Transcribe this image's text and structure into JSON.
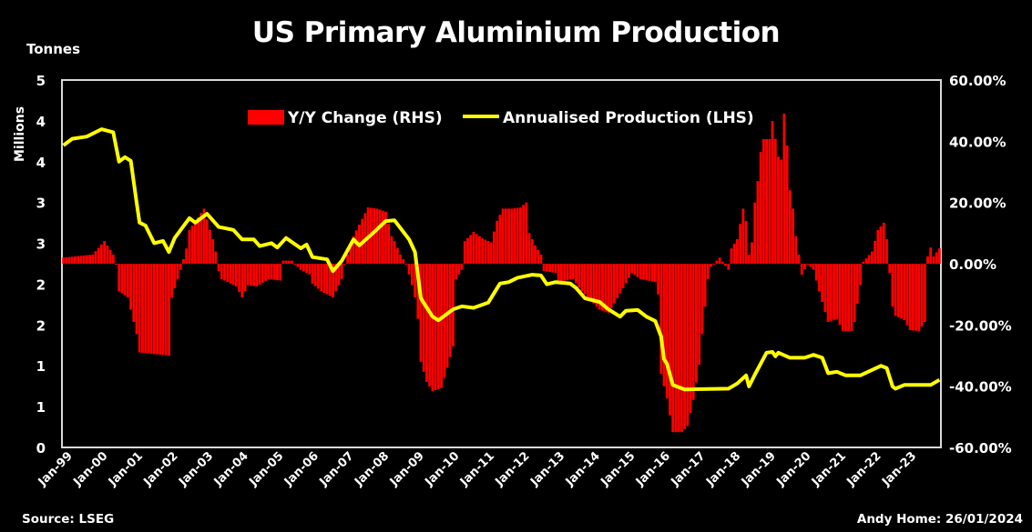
{
  "chart_data": {
    "type": "bar+line",
    "title": "US Primary Aluminium Production",
    "y_left_label": "Tonnes",
    "y_left_scale_label": "Millions",
    "y_left_range": [
      0,
      5
    ],
    "y_left_ticks": [
      "5",
      "4",
      "4",
      "3",
      "3",
      "2",
      "2",
      "1",
      "1",
      "0"
    ],
    "y_right_range": [
      -60,
      60
    ],
    "y_right_ticks": [
      "60.00%",
      "40.00%",
      "20.00%",
      "0.00%",
      "-20.00%",
      "-40.00%",
      "-60.00%"
    ],
    "x_range": [
      "1999-01",
      "2023-12"
    ],
    "x_ticks": [
      "Jan-99",
      "Jan-00",
      "Jan-01",
      "Jan-02",
      "Jan-03",
      "Jan-04",
      "Jan-05",
      "Jan-06",
      "Jan-07",
      "Jan-08",
      "Jan-09",
      "Jan-10",
      "Jan-11",
      "Jan-12",
      "Jan-13",
      "Jan-14",
      "Jan-15",
      "Jan-16",
      "Jan-17",
      "Jan-18",
      "Jan-19",
      "Jan-20",
      "Jan-21",
      "Jan-22",
      "Jan-23"
    ],
    "legend_position": "top-center",
    "grid": false,
    "series": [
      {
        "name": "Y/Y Change (RHS)",
        "type": "bar",
        "axis": "right",
        "unit": "%",
        "color": "#ff0000",
        "points": [
          [
            "1999-01",
            2
          ],
          [
            "1999-11",
            3
          ],
          [
            "2000-03",
            7.4
          ],
          [
            "2000-06",
            3
          ],
          [
            "2000-07",
            0
          ],
          [
            "2000-08",
            -9
          ],
          [
            "2000-11",
            -11
          ],
          [
            "2001-02",
            -23
          ],
          [
            "2001-03",
            -29
          ],
          [
            "2002-01",
            -30
          ],
          [
            "2002-02",
            -11
          ],
          [
            "2002-04",
            -5
          ],
          [
            "2002-05",
            -2
          ],
          [
            "2002-07",
            5
          ],
          [
            "2002-08",
            11
          ],
          [
            "2003-01",
            18
          ],
          [
            "2003-03",
            11
          ],
          [
            "2003-04",
            8
          ],
          [
            "2003-05",
            4
          ],
          [
            "2003-06",
            -2.4
          ],
          [
            "2003-07",
            -5
          ],
          [
            "2003-12",
            -7.4
          ],
          [
            "2004-02",
            -11
          ],
          [
            "2004-04",
            -7
          ],
          [
            "2004-07",
            -7.4
          ],
          [
            "2004-11",
            -5
          ],
          [
            "2005-03",
            -5.5
          ],
          [
            "2005-04",
            1
          ],
          [
            "2005-07",
            1
          ],
          [
            "2005-10",
            -2
          ],
          [
            "2006-01",
            -3.5
          ],
          [
            "2006-02",
            -6.5
          ],
          [
            "2006-05",
            -9
          ],
          [
            "2006-09",
            -11
          ],
          [
            "2006-12",
            -5
          ],
          [
            "2007-01",
            0
          ],
          [
            "2007-04",
            9
          ],
          [
            "2007-09",
            18.4
          ],
          [
            "2007-12",
            18
          ],
          [
            "2008-03",
            17
          ],
          [
            "2008-05",
            9
          ],
          [
            "2008-06",
            7.4
          ],
          [
            "2008-08",
            3
          ],
          [
            "2008-10",
            0
          ],
          [
            "2008-12",
            -7
          ],
          [
            "2009-01",
            -11
          ],
          [
            "2009-02",
            -18
          ],
          [
            "2009-03",
            -32
          ],
          [
            "2009-05",
            -38.6
          ],
          [
            "2009-07",
            -41.6
          ],
          [
            "2009-10",
            -40.6
          ],
          [
            "2009-12",
            -34
          ],
          [
            "2010-02",
            -27
          ],
          [
            "2010-03",
            -5
          ],
          [
            "2010-05",
            -2
          ],
          [
            "2010-06",
            7.4
          ],
          [
            "2010-09",
            10.4
          ],
          [
            "2010-12",
            8.3
          ],
          [
            "2011-03",
            7
          ],
          [
            "2011-05",
            14
          ],
          [
            "2011-07",
            18
          ],
          [
            "2011-10",
            18
          ],
          [
            "2012-01",
            18.4
          ],
          [
            "2012-03",
            20
          ],
          [
            "2012-04",
            10
          ],
          [
            "2012-06",
            6
          ],
          [
            "2012-08",
            3
          ],
          [
            "2012-09",
            -2.4
          ],
          [
            "2013-01",
            -3
          ],
          [
            "2013-02",
            -6
          ],
          [
            "2013-07",
            -5
          ],
          [
            "2013-10",
            -9
          ],
          [
            "2013-12",
            -11
          ],
          [
            "2014-04",
            -15
          ],
          [
            "2014-07",
            -16
          ],
          [
            "2014-09",
            -13
          ],
          [
            "2014-12",
            -8
          ],
          [
            "2015-03",
            -3
          ],
          [
            "2015-06",
            -5
          ],
          [
            "2015-11",
            -6
          ],
          [
            "2015-12",
            -10
          ],
          [
            "2016-01",
            -36
          ],
          [
            "2016-03",
            -44
          ],
          [
            "2016-05",
            -55
          ],
          [
            "2016-08",
            -55
          ],
          [
            "2016-10",
            -53
          ],
          [
            "2016-12",
            -44.5
          ],
          [
            "2017-02",
            -33
          ],
          [
            "2017-03",
            -23
          ],
          [
            "2017-05",
            -5
          ],
          [
            "2017-06",
            -1
          ],
          [
            "2017-09",
            2
          ],
          [
            "2017-12",
            -2
          ],
          [
            "2018-01",
            5
          ],
          [
            "2018-03",
            8
          ],
          [
            "2018-04",
            13
          ],
          [
            "2018-05",
            18
          ],
          [
            "2018-06",
            14
          ],
          [
            "2018-07",
            3
          ],
          [
            "2018-08",
            7
          ],
          [
            "2018-09",
            20
          ],
          [
            "2018-10",
            27
          ],
          [
            "2018-11",
            36.5
          ],
          [
            "2018-12",
            40.7
          ],
          [
            "2019-02",
            40.7
          ],
          [
            "2019-03",
            46.6
          ],
          [
            "2019-05",
            35
          ],
          [
            "2019-06",
            34
          ],
          [
            "2019-07",
            49
          ],
          [
            "2019-08",
            38.6
          ],
          [
            "2019-09",
            24
          ],
          [
            "2019-10",
            18
          ],
          [
            "2019-11",
            9
          ],
          [
            "2019-12",
            3
          ],
          [
            "2020-01",
            -3.6
          ],
          [
            "2020-03",
            0
          ],
          [
            "2020-05",
            -2
          ],
          [
            "2020-08",
            -12.5
          ],
          [
            "2020-10",
            -19
          ],
          [
            "2021-01",
            -18
          ],
          [
            "2021-03",
            -22
          ],
          [
            "2021-06",
            -22
          ],
          [
            "2021-07",
            -19
          ],
          [
            "2021-09",
            -7
          ],
          [
            "2021-10",
            0.6
          ],
          [
            "2022-01",
            4
          ],
          [
            "2022-03",
            11
          ],
          [
            "2022-05",
            13.4
          ],
          [
            "2022-06",
            8
          ],
          [
            "2022-08",
            -14
          ],
          [
            "2022-09",
            -17
          ],
          [
            "2022-12",
            -18.4
          ],
          [
            "2023-02",
            -21.7
          ],
          [
            "2023-05",
            -22
          ],
          [
            "2023-07",
            -19
          ],
          [
            "2023-08",
            2.4
          ],
          [
            "2023-09",
            5.3
          ],
          [
            "2023-10",
            2.4
          ],
          [
            "2023-12",
            5
          ]
        ]
      },
      {
        "name": "Annualised Production (LHS)",
        "type": "line",
        "axis": "left",
        "unit": "million tonnes",
        "color": "#ffff00",
        "points": [
          [
            "1999-01",
            4.11
          ],
          [
            "1999-04",
            4.2
          ],
          [
            "1999-09",
            4.23
          ],
          [
            "2000-02",
            4.33
          ],
          [
            "2000-06",
            4.29
          ],
          [
            "2000-08",
            3.89
          ],
          [
            "2000-10",
            3.95
          ],
          [
            "2000-12",
            3.9
          ],
          [
            "2001-02",
            3.33
          ],
          [
            "2001-03",
            3.06
          ],
          [
            "2001-05",
            3.02
          ],
          [
            "2001-08",
            2.78
          ],
          [
            "2001-11",
            2.81
          ],
          [
            "2002-01",
            2.66
          ],
          [
            "2002-03",
            2.85
          ],
          [
            "2002-08",
            3.12
          ],
          [
            "2002-10",
            3.06
          ],
          [
            "2003-02",
            3.18
          ],
          [
            "2003-06",
            3.0
          ],
          [
            "2003-11",
            2.96
          ],
          [
            "2004-02",
            2.83
          ],
          [
            "2004-06",
            2.83
          ],
          [
            "2004-08",
            2.74
          ],
          [
            "2004-12",
            2.78
          ],
          [
            "2005-02",
            2.72
          ],
          [
            "2005-05",
            2.85
          ],
          [
            "2005-10",
            2.71
          ],
          [
            "2005-12",
            2.76
          ],
          [
            "2006-02",
            2.59
          ],
          [
            "2006-07",
            2.56
          ],
          [
            "2006-09",
            2.4
          ],
          [
            "2006-12",
            2.54
          ],
          [
            "2007-04",
            2.83
          ],
          [
            "2007-06",
            2.75
          ],
          [
            "2007-11",
            2.93
          ],
          [
            "2008-03",
            3.08
          ],
          [
            "2008-06",
            3.09
          ],
          [
            "2008-11",
            2.83
          ],
          [
            "2009-01",
            2.66
          ],
          [
            "2009-03",
            2.03
          ],
          [
            "2009-07",
            1.78
          ],
          [
            "2009-09",
            1.73
          ],
          [
            "2010-02",
            1.88
          ],
          [
            "2010-05",
            1.92
          ],
          [
            "2010-09",
            1.9
          ],
          [
            "2011-02",
            1.97
          ],
          [
            "2011-06",
            2.23
          ],
          [
            "2011-09",
            2.25
          ],
          [
            "2011-12",
            2.31
          ],
          [
            "2012-05",
            2.35
          ],
          [
            "2012-08",
            2.34
          ],
          [
            "2012-10",
            2.22
          ],
          [
            "2013-01",
            2.25
          ],
          [
            "2013-06",
            2.23
          ],
          [
            "2013-08",
            2.17
          ],
          [
            "2013-11",
            2.03
          ],
          [
            "2014-04",
            1.98
          ],
          [
            "2014-07",
            1.88
          ],
          [
            "2014-11",
            1.78
          ],
          [
            "2015-01",
            1.86
          ],
          [
            "2015-05",
            1.87
          ],
          [
            "2015-08",
            1.78
          ],
          [
            "2015-11",
            1.72
          ],
          [
            "2016-01",
            1.51
          ],
          [
            "2016-02",
            1.2
          ],
          [
            "2016-03",
            1.14
          ],
          [
            "2016-05",
            0.85
          ],
          [
            "2016-09",
            0.79
          ],
          [
            "2017-12",
            0.8
          ],
          [
            "2018-03",
            0.87
          ],
          [
            "2018-06",
            0.98
          ],
          [
            "2018-07",
            0.83
          ],
          [
            "2018-09",
            0.99
          ],
          [
            "2019-01",
            1.29
          ],
          [
            "2019-03",
            1.3
          ],
          [
            "2019-04",
            1.24
          ],
          [
            "2019-05",
            1.29
          ],
          [
            "2019-09",
            1.22
          ],
          [
            "2020-02",
            1.22
          ],
          [
            "2020-05",
            1.26
          ],
          [
            "2020-08",
            1.22
          ],
          [
            "2020-10",
            1.01
          ],
          [
            "2021-01",
            1.03
          ],
          [
            "2021-04",
            0.98
          ],
          [
            "2021-09",
            0.98
          ],
          [
            "2022-04",
            1.11
          ],
          [
            "2022-06",
            1.08
          ],
          [
            "2022-08",
            0.83
          ],
          [
            "2022-09",
            0.8
          ],
          [
            "2022-12",
            0.85
          ],
          [
            "2023-09",
            0.85
          ],
          [
            "2023-12",
            0.92
          ]
        ]
      }
    ]
  },
  "footer": {
    "source": "Source: LSEG",
    "author": "Andy Home: 26/01/2024"
  }
}
